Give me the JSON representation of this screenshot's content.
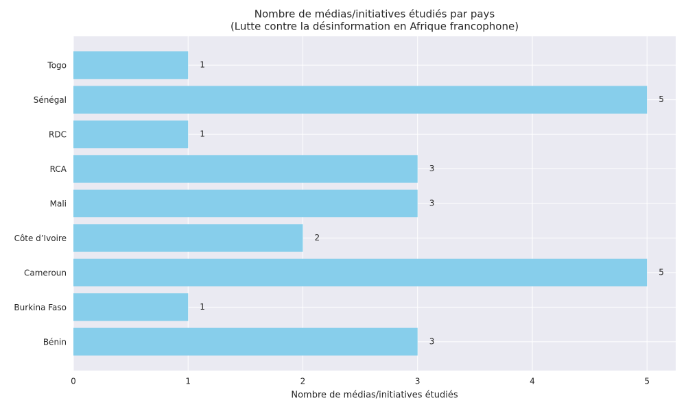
{
  "chart_data": {
    "type": "barh",
    "title": "Nombre de médias/initiatives étudiés par pays",
    "subtitle": "(Lutte contre la désinformation en Afrique francophone)",
    "xlabel": "Nombre de médias/initiatives étudiés",
    "categories": [
      "Bénin",
      "Burkina Faso",
      "Cameroun",
      "Côte d’Ivoire",
      "Mali",
      "RCA",
      "RDC",
      "Sénégal",
      "Togo"
    ],
    "values": [
      3,
      1,
      5,
      2,
      3,
      3,
      1,
      5,
      1
    ],
    "color": "#87ceeb",
    "xlim": [
      0,
      5.25
    ],
    "xticks": [
      0,
      1,
      2,
      3,
      4,
      5
    ],
    "grid": true
  }
}
